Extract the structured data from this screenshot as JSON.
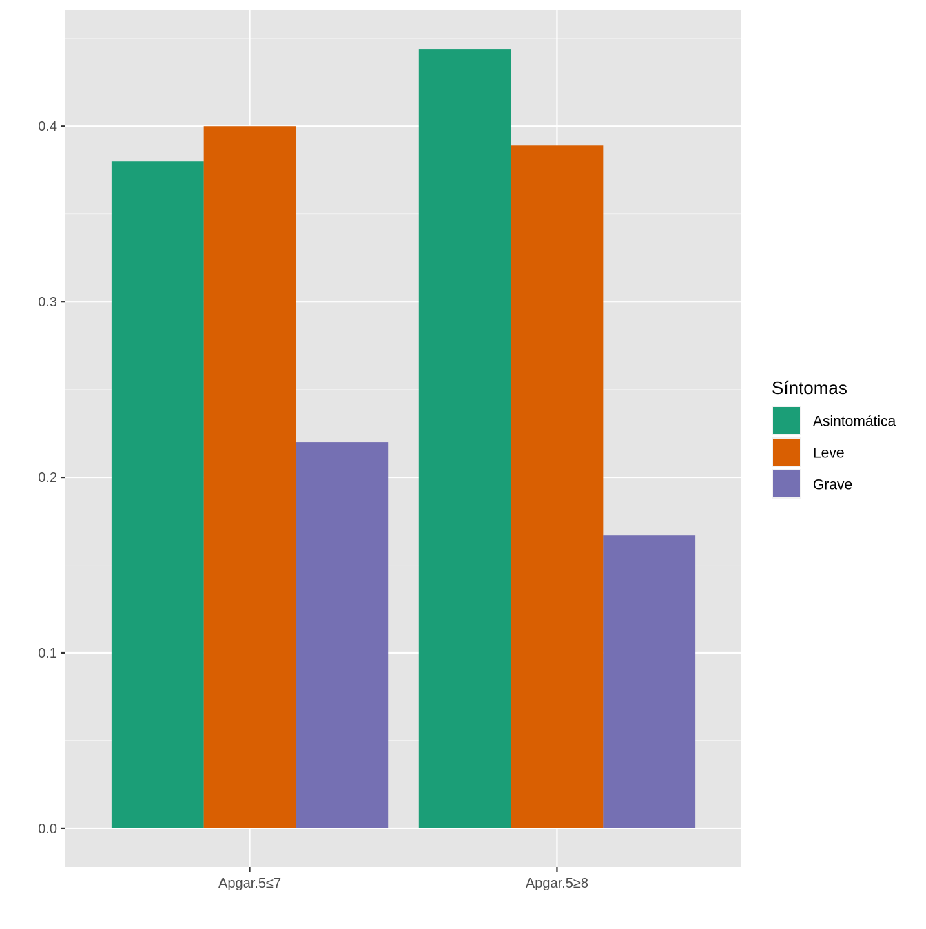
{
  "chart_data": {
    "type": "bar",
    "categories": [
      "Apgar.5≤7",
      "Apgar.5≥8"
    ],
    "series": [
      {
        "name": "Asintomática",
        "color": "#1b9e77",
        "values": [
          0.38,
          0.444
        ]
      },
      {
        "name": "Leve",
        "color": "#d95f02",
        "values": [
          0.4,
          0.389
        ]
      },
      {
        "name": "Grave",
        "color": "#7570b3",
        "values": [
          0.22,
          0.167
        ]
      }
    ],
    "y_ticks": [
      0.0,
      0.1,
      0.2,
      0.3,
      0.4
    ],
    "y_tick_labels": [
      "0.0",
      "0.1",
      "0.2",
      "0.3",
      "0.4"
    ],
    "ylim": [
      -0.022,
      0.466
    ],
    "grid": true,
    "panel_background": "#e5e5e5",
    "legend": {
      "title": "Síntomas",
      "position": "right"
    }
  }
}
